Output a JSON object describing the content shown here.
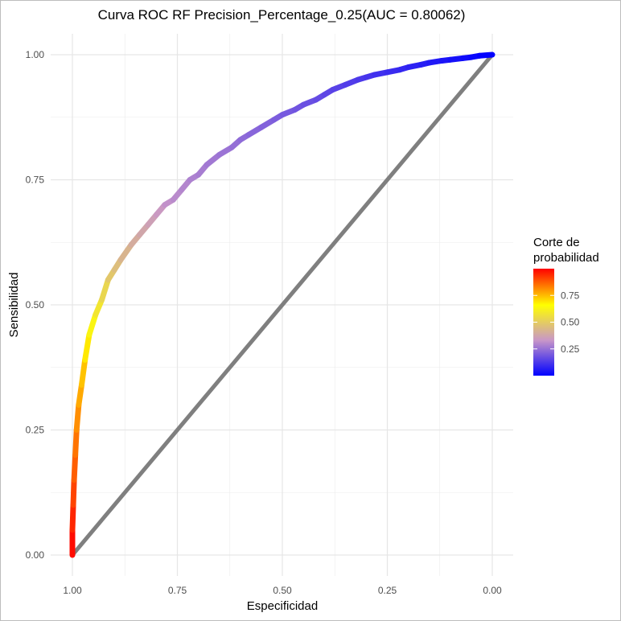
{
  "chart_data": {
    "type": "line",
    "title": "Curva ROC RF Precision_Percentage_0.25(AUC = 0.80062)",
    "xlabel": "Especificidad",
    "ylabel": "Sensibilidad",
    "xlim": [
      1.0,
      0.0
    ],
    "ylim": [
      0.0,
      1.0
    ],
    "x_reversed": true,
    "x_ticks": [
      "1.00",
      "0.75",
      "0.50",
      "0.25",
      "0.00"
    ],
    "y_ticks": [
      "0.00",
      "0.25",
      "0.50",
      "0.75",
      "1.00"
    ],
    "grid": true,
    "legend": {
      "title_line1": "Corte de",
      "title_line2": "probabilidad",
      "position": "right",
      "labels": [
        "0.75",
        "0.50",
        "0.25"
      ],
      "colors": [
        "#0000ff",
        "#c896c8",
        "#ffff00",
        "#ff0000"
      ]
    },
    "series": [
      {
        "specificity": [
          1.0,
          1.0,
          0.998,
          0.996,
          0.993,
          0.99,
          0.985,
          0.978,
          0.97,
          0.96,
          0.945,
          0.93,
          0.915,
          0.9,
          0.885,
          0.86,
          0.84,
          0.82,
          0.8,
          0.78,
          0.76,
          0.74,
          0.72,
          0.7,
          0.68,
          0.65,
          0.62,
          0.6,
          0.58,
          0.55,
          0.52,
          0.5,
          0.47,
          0.45,
          0.42,
          0.4,
          0.38,
          0.35,
          0.32,
          0.3,
          0.28,
          0.25,
          0.22,
          0.2,
          0.17,
          0.15,
          0.12,
          0.1,
          0.07,
          0.05,
          0.03,
          0.0
        ],
        "sensitivity": [
          0.0,
          0.05,
          0.1,
          0.15,
          0.2,
          0.25,
          0.3,
          0.34,
          0.39,
          0.44,
          0.48,
          0.51,
          0.55,
          0.57,
          0.59,
          0.62,
          0.64,
          0.66,
          0.68,
          0.7,
          0.71,
          0.73,
          0.75,
          0.76,
          0.78,
          0.8,
          0.815,
          0.83,
          0.84,
          0.855,
          0.87,
          0.88,
          0.89,
          0.9,
          0.91,
          0.92,
          0.93,
          0.94,
          0.95,
          0.955,
          0.96,
          0.965,
          0.97,
          0.975,
          0.98,
          0.984,
          0.988,
          0.99,
          0.993,
          0.995,
          0.998,
          1.0
        ],
        "cutoff": [
          1.0,
          0.97,
          0.93,
          0.89,
          0.86,
          0.83,
          0.79,
          0.76,
          0.72,
          0.66,
          0.6,
          0.56,
          0.5,
          0.47,
          0.44,
          0.41,
          0.39,
          0.37,
          0.35,
          0.33,
          0.31,
          0.3,
          0.29,
          0.28,
          0.27,
          0.26,
          0.25,
          0.24,
          0.23,
          0.22,
          0.21,
          0.2,
          0.19,
          0.18,
          0.17,
          0.16,
          0.15,
          0.14,
          0.13,
          0.12,
          0.11,
          0.1,
          0.09,
          0.08,
          0.07,
          0.06,
          0.05,
          0.04,
          0.03,
          0.02,
          0.01,
          0.0
        ]
      },
      {
        "specificity": [
          1.0,
          0.0
        ],
        "sensitivity": [
          0.0,
          1.0
        ],
        "color": "#7f7f7f"
      }
    ]
  }
}
